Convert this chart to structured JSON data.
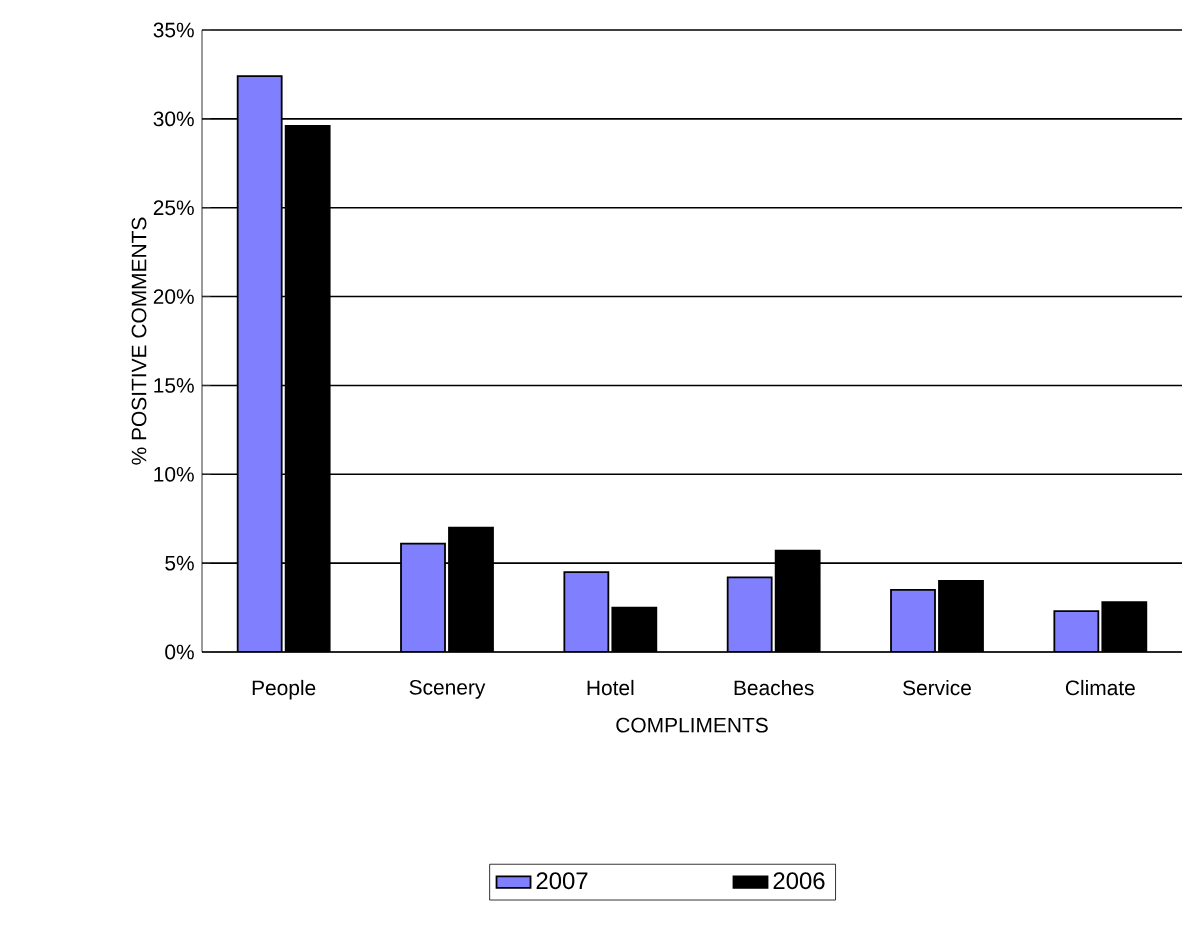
{
  "chart_data": {
    "type": "bar",
    "xlabel": "COMPLIMENTS",
    "ylabel": "% POSITIVE COMMENTS",
    "categories": [
      "People",
      "Scenery",
      "Hotel",
      "Beaches",
      "Service",
      "Climate"
    ],
    "series": [
      {
        "name": "2007",
        "color": "#8080ff",
        "values": [
          32.4,
          6.1,
          4.5,
          4.2,
          3.5,
          2.3
        ]
      },
      {
        "name": "2006",
        "color": "#000000",
        "values": [
          29.6,
          7.0,
          2.5,
          5.7,
          4.0,
          2.8
        ]
      }
    ],
    "ylim": [
      0,
      35
    ],
    "yticks": [
      {
        "value": 0,
        "label": "0%"
      },
      {
        "value": 5,
        "label": "5%"
      },
      {
        "value": 10,
        "label": "10%"
      },
      {
        "value": 15,
        "label": "15%"
      },
      {
        "value": 20,
        "label": "20%"
      },
      {
        "value": 25,
        "label": "25%"
      },
      {
        "value": 30,
        "label": "30%"
      },
      {
        "value": 35,
        "label": "35%"
      }
    ],
    "grid": "y",
    "legend": "bottom"
  }
}
